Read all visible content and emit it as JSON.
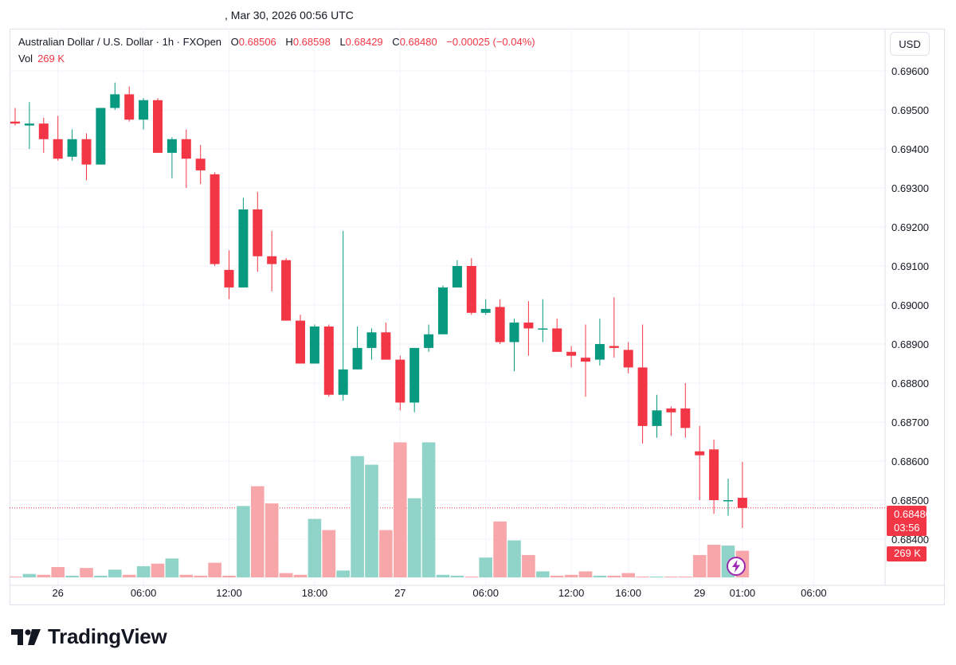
{
  "header": {
    "timestamp": ", Mar 30, 2026 00:56 UTC"
  },
  "legend": {
    "symbol": "Australian Dollar / U.S. Dollar · 1h · FXOpen",
    "open_label": "O",
    "open": "0.68506",
    "high_label": "H",
    "high": "0.68598",
    "low_label": "L",
    "low": "0.68429",
    "close_label": "C",
    "close": "0.68480",
    "change": "−0.00025 (−0.04%)",
    "vol_label": "Vol",
    "vol_value": "269 K"
  },
  "currency_button": "USD",
  "price_tag": {
    "price": "0.68480",
    "countdown": "03:56"
  },
  "volume_tag": "269 K",
  "colors": {
    "up": "#089981",
    "down": "#f23645",
    "vol_up": "#8fd3c9",
    "vol_down": "#f7a6a9",
    "grid": "#f0f3fa",
    "axis_text": "#131722"
  },
  "logo": {
    "text": "TradingView",
    "icon": "tradingview-logo-icon"
  },
  "chart_data": {
    "type": "candlestick",
    "y_axis": {
      "min": 0.6836,
      "max": 0.6966,
      "ticks": [
        "0.69600",
        "0.69500",
        "0.69400",
        "0.69300",
        "0.69200",
        "0.69100",
        "0.69000",
        "0.68900",
        "0.68800",
        "0.68700",
        "0.68600",
        "0.68500",
        "0.68400"
      ]
    },
    "x_axis": {
      "labels": [
        {
          "label": "26",
          "index": 3
        },
        {
          "label": "06:00",
          "index": 9
        },
        {
          "label": "12:00",
          "index": 15
        },
        {
          "label": "18:00",
          "index": 21
        },
        {
          "label": "27",
          "index": 27
        },
        {
          "label": "06:00",
          "index": 33
        },
        {
          "label": "12:00",
          "index": 39
        },
        {
          "label": "16:00",
          "index": 43
        },
        {
          "label": "29",
          "index": 48
        },
        {
          "label": "01:00",
          "index": 51
        },
        {
          "label": "06:00",
          "index": 56
        }
      ]
    },
    "last_price_line": 0.6848,
    "candles": [
      {
        "o": 0.6947,
        "h": 0.69505,
        "l": 0.6946,
        "c": 0.69465,
        "v": 0
      },
      {
        "o": 0.6946,
        "h": 0.6952,
        "l": 0.694,
        "c": 0.69465,
        "v": 4
      },
      {
        "o": 0.69465,
        "h": 0.6948,
        "l": 0.6939,
        "c": 0.69425,
        "v": 3
      },
      {
        "o": 0.69425,
        "h": 0.69485,
        "l": 0.6937,
        "c": 0.69375,
        "v": 12
      },
      {
        "o": 0.6938,
        "h": 0.6945,
        "l": 0.6937,
        "c": 0.69425,
        "v": 2
      },
      {
        "o": 0.69425,
        "h": 0.6944,
        "l": 0.6932,
        "c": 0.6936,
        "v": 11
      },
      {
        "o": 0.6936,
        "h": 0.69505,
        "l": 0.6936,
        "c": 0.69505,
        "v": 2
      },
      {
        "o": 0.69505,
        "h": 0.6957,
        "l": 0.695,
        "c": 0.6954,
        "v": 9
      },
      {
        "o": 0.6954,
        "h": 0.6956,
        "l": 0.6947,
        "c": 0.69475,
        "v": 3
      },
      {
        "o": 0.69475,
        "h": 0.6953,
        "l": 0.6945,
        "c": 0.69525,
        "v": 13
      },
      {
        "o": 0.69525,
        "h": 0.6953,
        "l": 0.6939,
        "c": 0.6939,
        "v": 16
      },
      {
        "o": 0.6939,
        "h": 0.6943,
        "l": 0.69325,
        "c": 0.69425,
        "v": 22
      },
      {
        "o": 0.69425,
        "h": 0.6945,
        "l": 0.693,
        "c": 0.69375,
        "v": 3
      },
      {
        "o": 0.69375,
        "h": 0.6941,
        "l": 0.6931,
        "c": 0.69345,
        "v": 2
      },
      {
        "o": 0.69335,
        "h": 0.6934,
        "l": 0.691,
        "c": 0.69105,
        "v": 17
      },
      {
        "o": 0.6909,
        "h": 0.6914,
        "l": 0.69015,
        "c": 0.69045,
        "v": 2
      },
      {
        "o": 0.69045,
        "h": 0.69275,
        "l": 0.69045,
        "c": 0.69245,
        "v": 83
      },
      {
        "o": 0.69245,
        "h": 0.6929,
        "l": 0.69085,
        "c": 0.69125,
        "v": 106
      },
      {
        "o": 0.69125,
        "h": 0.6919,
        "l": 0.69035,
        "c": 0.69105,
        "v": 86
      },
      {
        "o": 0.69115,
        "h": 0.6912,
        "l": 0.6896,
        "c": 0.6896,
        "v": 5
      },
      {
        "o": 0.6896,
        "h": 0.68975,
        "l": 0.6885,
        "c": 0.6885,
        "v": 3
      },
      {
        "o": 0.6885,
        "h": 0.6895,
        "l": 0.6885,
        "c": 0.68945,
        "v": 68
      },
      {
        "o": 0.68945,
        "h": 0.6895,
        "l": 0.68765,
        "c": 0.6877,
        "v": 55
      },
      {
        "o": 0.6877,
        "h": 0.6919,
        "l": 0.68755,
        "c": 0.68835,
        "v": 8
      },
      {
        "o": 0.68835,
        "h": 0.68945,
        "l": 0.68835,
        "c": 0.6889,
        "v": 141
      },
      {
        "o": 0.6889,
        "h": 0.6894,
        "l": 0.6886,
        "c": 0.6893,
        "v": 131
      },
      {
        "o": 0.6893,
        "h": 0.68955,
        "l": 0.6886,
        "c": 0.6886,
        "v": 55
      },
      {
        "o": 0.6886,
        "h": 0.6887,
        "l": 0.6873,
        "c": 0.6875,
        "v": 157
      },
      {
        "o": 0.6875,
        "h": 0.6889,
        "l": 0.68725,
        "c": 0.6889,
        "v": 92
      },
      {
        "o": 0.6889,
        "h": 0.6895,
        "l": 0.6888,
        "c": 0.68925,
        "v": 157
      },
      {
        "o": 0.68925,
        "h": 0.6905,
        "l": 0.68925,
        "c": 0.69045,
        "v": 3
      },
      {
        "o": 0.69045,
        "h": 0.69115,
        "l": 0.69045,
        "c": 0.691,
        "v": 2
      },
      {
        "o": 0.691,
        "h": 0.6912,
        "l": 0.68975,
        "c": 0.6898,
        "v": 1
      },
      {
        "o": 0.6898,
        "h": 0.69015,
        "l": 0.68975,
        "c": 0.6899,
        "v": 23
      },
      {
        "o": 0.68995,
        "h": 0.69015,
        "l": 0.689,
        "c": 0.68905,
        "v": 65
      },
      {
        "o": 0.68905,
        "h": 0.68965,
        "l": 0.6883,
        "c": 0.68955,
        "v": 43
      },
      {
        "o": 0.68955,
        "h": 0.6901,
        "l": 0.6887,
        "c": 0.6894,
        "v": 26
      },
      {
        "o": 0.6894,
        "h": 0.69015,
        "l": 0.68905,
        "c": 0.6894,
        "v": 7
      },
      {
        "o": 0.6894,
        "h": 0.68965,
        "l": 0.6888,
        "c": 0.6888,
        "v": 2
      },
      {
        "o": 0.6888,
        "h": 0.68895,
        "l": 0.6884,
        "c": 0.6887,
        "v": 3
      },
      {
        "o": 0.68865,
        "h": 0.6895,
        "l": 0.68765,
        "c": 0.68855,
        "v": 7
      },
      {
        "o": 0.6886,
        "h": 0.68965,
        "l": 0.68845,
        "c": 0.689,
        "v": 2
      },
      {
        "o": 0.68895,
        "h": 0.6902,
        "l": 0.68865,
        "c": 0.6889,
        "v": 2
      },
      {
        "o": 0.68885,
        "h": 0.68905,
        "l": 0.68825,
        "c": 0.6884,
        "v": 5
      },
      {
        "o": 0.6884,
        "h": 0.6895,
        "l": 0.68645,
        "c": 0.6869,
        "v": 1
      },
      {
        "o": 0.6869,
        "h": 0.6877,
        "l": 0.6866,
        "c": 0.6873,
        "v": 1
      },
      {
        "o": 0.68735,
        "h": 0.6874,
        "l": 0.68665,
        "c": 0.68725,
        "v": 1
      },
      {
        "o": 0.68735,
        "h": 0.688,
        "l": 0.6866,
        "c": 0.68685,
        "v": 1
      },
      {
        "o": 0.68625,
        "h": 0.6869,
        "l": 0.685,
        "c": 0.68615,
        "v": 26
      },
      {
        "o": 0.6863,
        "h": 0.68655,
        "l": 0.68465,
        "c": 0.685,
        "v": 38
      },
      {
        "o": 0.685,
        "h": 0.68555,
        "l": 0.6846,
        "c": 0.685,
        "v": 37
      },
      {
        "o": 0.68506,
        "h": 0.68598,
        "l": 0.68429,
        "c": 0.6848,
        "v": 31
      }
    ]
  }
}
